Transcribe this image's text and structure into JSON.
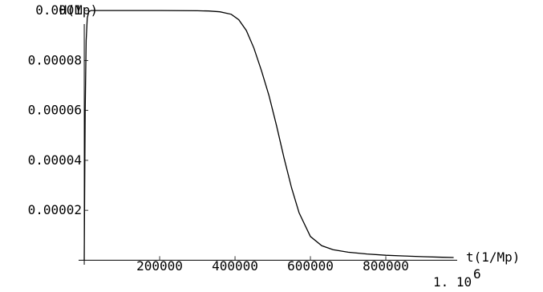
{
  "chart_data": {
    "type": "line",
    "xlabel": "t(1/Mp)",
    "ylabel": "H(Mp)",
    "xlim": [
      -15000,
      1000000
    ],
    "ylim": [
      -1.8e-06,
      0.000101
    ],
    "x_ticks": [
      {
        "value": 200000,
        "label": "200000"
      },
      {
        "value": 400000,
        "label": "400000"
      },
      {
        "value": 600000,
        "label": "600000"
      },
      {
        "value": 800000,
        "label": "800000"
      }
    ],
    "x_exponent_label": {
      "mantissa": "1. 10",
      "exponent": "6"
    },
    "y_ticks": [
      {
        "value": 2e-05,
        "label": "0.00002"
      },
      {
        "value": 4e-05,
        "label": "0.00004"
      },
      {
        "value": 6e-05,
        "label": "0.00006"
      },
      {
        "value": 8e-05,
        "label": "0.00008"
      },
      {
        "value": 0.0001,
        "label": "0.0001"
      }
    ],
    "series": [
      {
        "x": [
          0,
          2500,
          5000,
          8000,
          12000,
          18000,
          25000,
          40000,
          100000,
          200000,
          300000,
          330000,
          360000,
          390000,
          410000,
          430000,
          450000,
          470000,
          490000,
          510000,
          530000,
          550000,
          570000,
          600000,
          630000,
          660000,
          700000,
          750000,
          800000,
          850000,
          900000,
          950000,
          980000
        ],
        "y": [
          0.0,
          6e-05,
          8.8e-05,
          9.7e-05,
          9.95e-05,
          0.0001,
          0.0001,
          0.0001,
          0.0001,
          0.0001,
          9.99e-05,
          9.98e-05,
          9.95e-05,
          9.85e-05,
          9.63e-05,
          9.2e-05,
          8.5e-05,
          7.6e-05,
          6.6e-05,
          5.4e-05,
          4.1e-05,
          2.9e-05,
          1.9e-05,
          9.5e-06,
          5.8e-06,
          4.2e-06,
          3.2e-06,
          2.5e-06,
          2e-06,
          1.7e-06,
          1.4e-06,
          1.2e-06,
          1.1e-06
        ]
      }
    ]
  }
}
